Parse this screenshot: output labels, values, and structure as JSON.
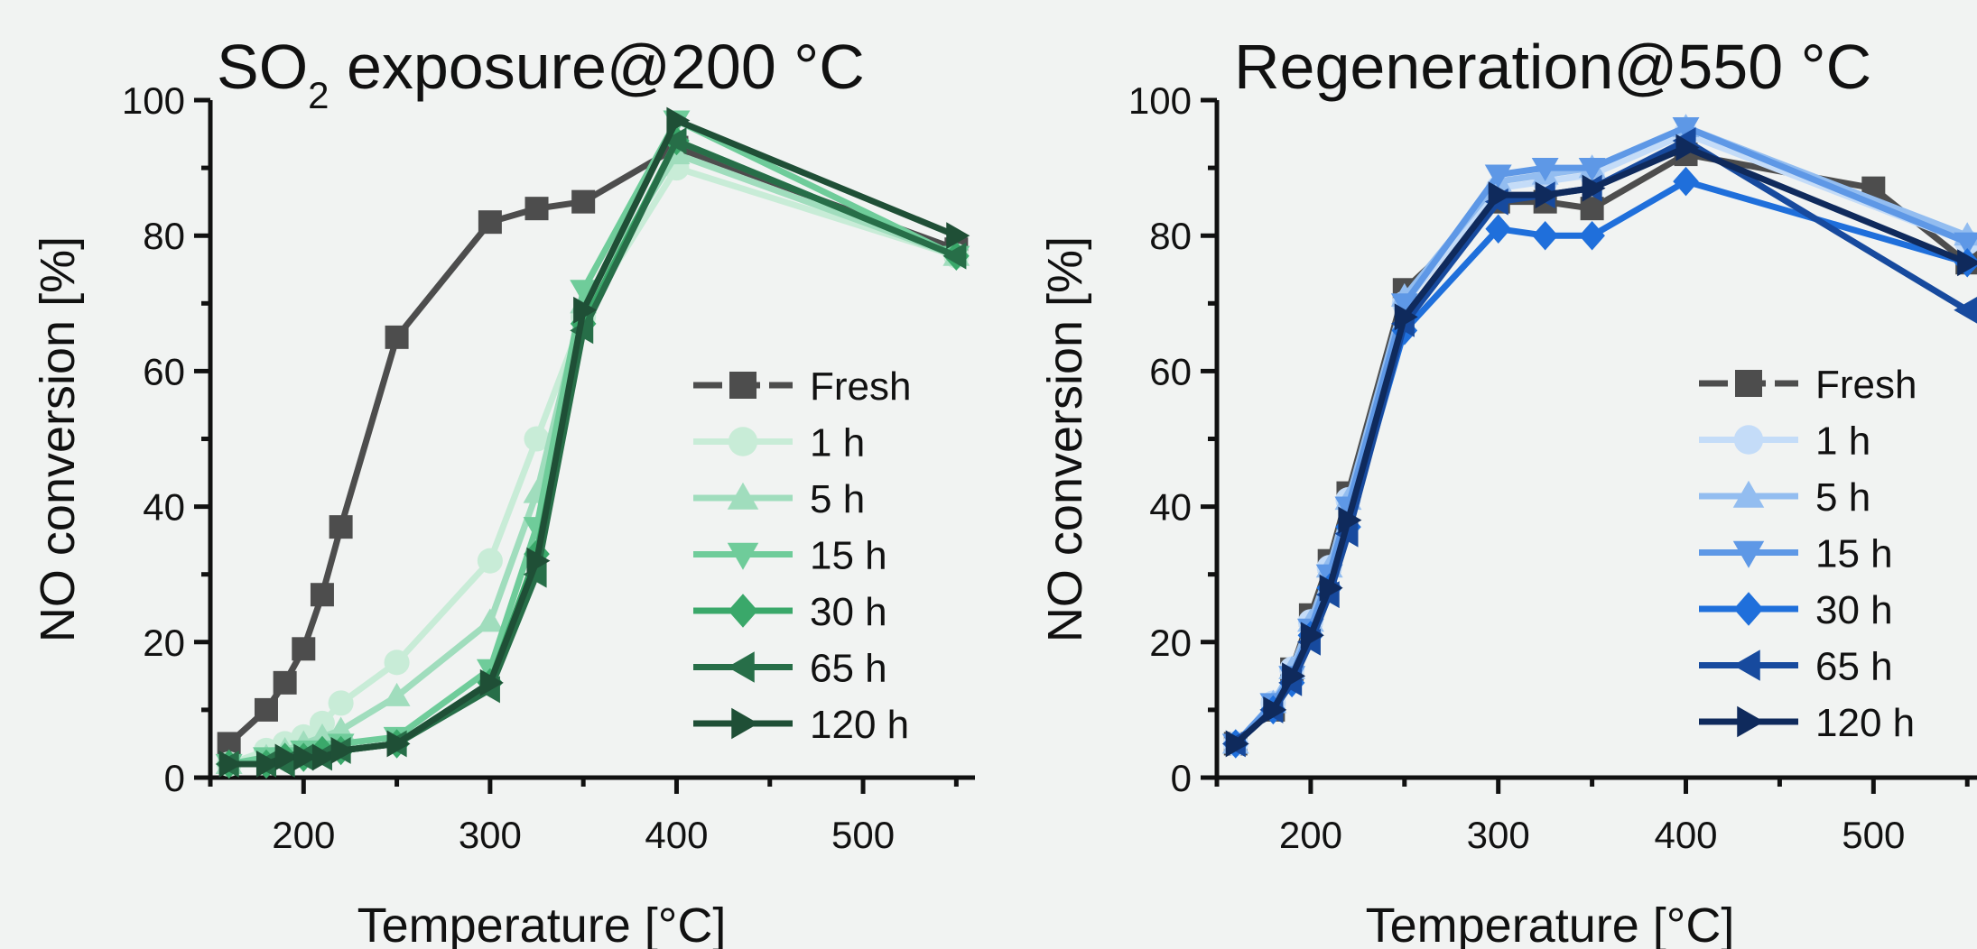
{
  "chart_data": [
    {
      "type": "line",
      "title": "SO2 exposure@200 °C",
      "title_main": "SO",
      "title_sub": "2",
      "title_rest": " exposure@200 °C",
      "xlabel": "Temperature [°C]",
      "ylabel": "NO conversion [%]",
      "xlim": [
        150,
        560
      ],
      "ylim": [
        0,
        100
      ],
      "xticks": [
        200,
        300,
        400,
        500
      ],
      "yticks": [
        0,
        20,
        40,
        60,
        80,
        100
      ],
      "legend_position": "right",
      "series": [
        {
          "name": "Fresh",
          "color": "#4d4d4d",
          "marker": "square",
          "x": [
            160,
            180,
            190,
            200,
            210,
            220,
            250,
            300,
            325,
            350,
            400,
            550
          ],
          "y": [
            5,
            10,
            14,
            19,
            27,
            37,
            65,
            82,
            84,
            85,
            93,
            78
          ]
        },
        {
          "name": "1 h",
          "color": "#c8ecd7",
          "marker": "circle",
          "x": [
            160,
            180,
            190,
            200,
            210,
            220,
            250,
            300,
            325,
            350,
            400,
            550
          ],
          "y": [
            2,
            4,
            5,
            6,
            8,
            11,
            17,
            32,
            50,
            68,
            90,
            77
          ]
        },
        {
          "name": "5 h",
          "color": "#a0ddbd",
          "marker": "triangle-up",
          "x": [
            160,
            180,
            190,
            200,
            210,
            220,
            250,
            300,
            325,
            350,
            400,
            550
          ],
          "y": [
            2,
            3,
            4,
            5,
            6,
            7,
            12,
            23,
            42,
            70,
            92,
            77
          ]
        },
        {
          "name": "15 h",
          "color": "#6fcc9a",
          "marker": "triangle-down",
          "x": [
            160,
            180,
            190,
            200,
            210,
            220,
            250,
            300,
            325,
            350,
            400,
            550
          ],
          "y": [
            2,
            3,
            3,
            4,
            4,
            5,
            6,
            16,
            37,
            72,
            97,
            77
          ]
        },
        {
          "name": "30 h",
          "color": "#3aa86a",
          "marker": "diamond",
          "x": [
            160,
            180,
            190,
            200,
            210,
            220,
            250,
            300,
            325,
            350,
            400,
            550
          ],
          "y": [
            2,
            2,
            3,
            3,
            4,
            4,
            5,
            14,
            33,
            67,
            94,
            77
          ]
        },
        {
          "name": "65 h",
          "color": "#276e48",
          "marker": "triangle-left",
          "x": [
            160,
            180,
            190,
            200,
            210,
            220,
            250,
            300,
            325,
            350,
            400,
            550
          ],
          "y": [
            2,
            2,
            2,
            3,
            3,
            4,
            5,
            13,
            30,
            66,
            94,
            77
          ]
        },
        {
          "name": "120 h",
          "color": "#1f4f36",
          "marker": "triangle-right",
          "x": [
            160,
            180,
            190,
            200,
            210,
            220,
            250,
            300,
            325,
            350,
            400,
            550
          ],
          "y": [
            2,
            2,
            3,
            3,
            3,
            4,
            5,
            14,
            32,
            69,
            97,
            80
          ]
        }
      ]
    },
    {
      "type": "line",
      "title": "Regeneration@550 °C",
      "title_main": "Regeneration@550 °C",
      "title_sub": "",
      "title_rest": "",
      "xlabel": "Temperature [°C]",
      "ylabel": "NO conversion [%]",
      "xlim": [
        150,
        560
      ],
      "ylim": [
        0,
        100
      ],
      "xticks": [
        200,
        300,
        400,
        500
      ],
      "yticks": [
        0,
        20,
        40,
        60,
        80,
        100
      ],
      "legend_position": "right",
      "series": [
        {
          "name": "Fresh",
          "color": "#4d4d4d",
          "marker": "square",
          "x": [
            160,
            180,
            190,
            200,
            210,
            220,
            250,
            300,
            325,
            350,
            400,
            500,
            550
          ],
          "y": [
            5,
            10,
            16,
            24,
            32,
            42,
            72,
            85,
            85,
            84,
            92,
            87,
            76
          ]
        },
        {
          "name": "1 h",
          "color": "#c4dcf8",
          "marker": "circle",
          "x": [
            160,
            180,
            190,
            200,
            210,
            220,
            250,
            300,
            325,
            350,
            400,
            550
          ],
          "y": [
            5,
            11,
            16,
            23,
            31,
            41,
            70,
            87,
            88,
            89,
            95,
            79
          ]
        },
        {
          "name": "5 h",
          "color": "#93bdf0",
          "marker": "triangle-up",
          "x": [
            160,
            180,
            190,
            200,
            210,
            220,
            250,
            300,
            325,
            350,
            400,
            550
          ],
          "y": [
            5,
            11,
            16,
            23,
            31,
            41,
            71,
            88,
            89,
            90,
            96,
            80
          ]
        },
        {
          "name": "15 h",
          "color": "#5e98e6",
          "marker": "triangle-down",
          "x": [
            160,
            180,
            190,
            200,
            210,
            220,
            250,
            300,
            325,
            350,
            400,
            550
          ],
          "y": [
            5,
            11,
            15,
            22,
            30,
            40,
            70,
            89,
            90,
            90,
            96,
            79
          ]
        },
        {
          "name": "30 h",
          "color": "#1f6fdb",
          "marker": "diamond",
          "x": [
            160,
            180,
            190,
            200,
            210,
            220,
            250,
            300,
            325,
            350,
            400,
            550
          ],
          "y": [
            5,
            10,
            14,
            21,
            28,
            37,
            66,
            81,
            80,
            80,
            88,
            76
          ]
        },
        {
          "name": "65 h",
          "color": "#174a9e",
          "marker": "triangle-left",
          "x": [
            160,
            180,
            190,
            200,
            210,
            220,
            250,
            300,
            325,
            350,
            400,
            550
          ],
          "y": [
            5,
            10,
            14,
            20,
            27,
            36,
            67,
            85,
            86,
            87,
            94,
            69
          ]
        },
        {
          "name": "120 h",
          "color": "#0f2a5c",
          "marker": "triangle-right",
          "x": [
            160,
            180,
            190,
            200,
            210,
            220,
            250,
            300,
            325,
            350,
            400,
            550
          ],
          "y": [
            5,
            10,
            15,
            21,
            28,
            38,
            68,
            86,
            86,
            87,
            93,
            76
          ]
        }
      ]
    }
  ]
}
